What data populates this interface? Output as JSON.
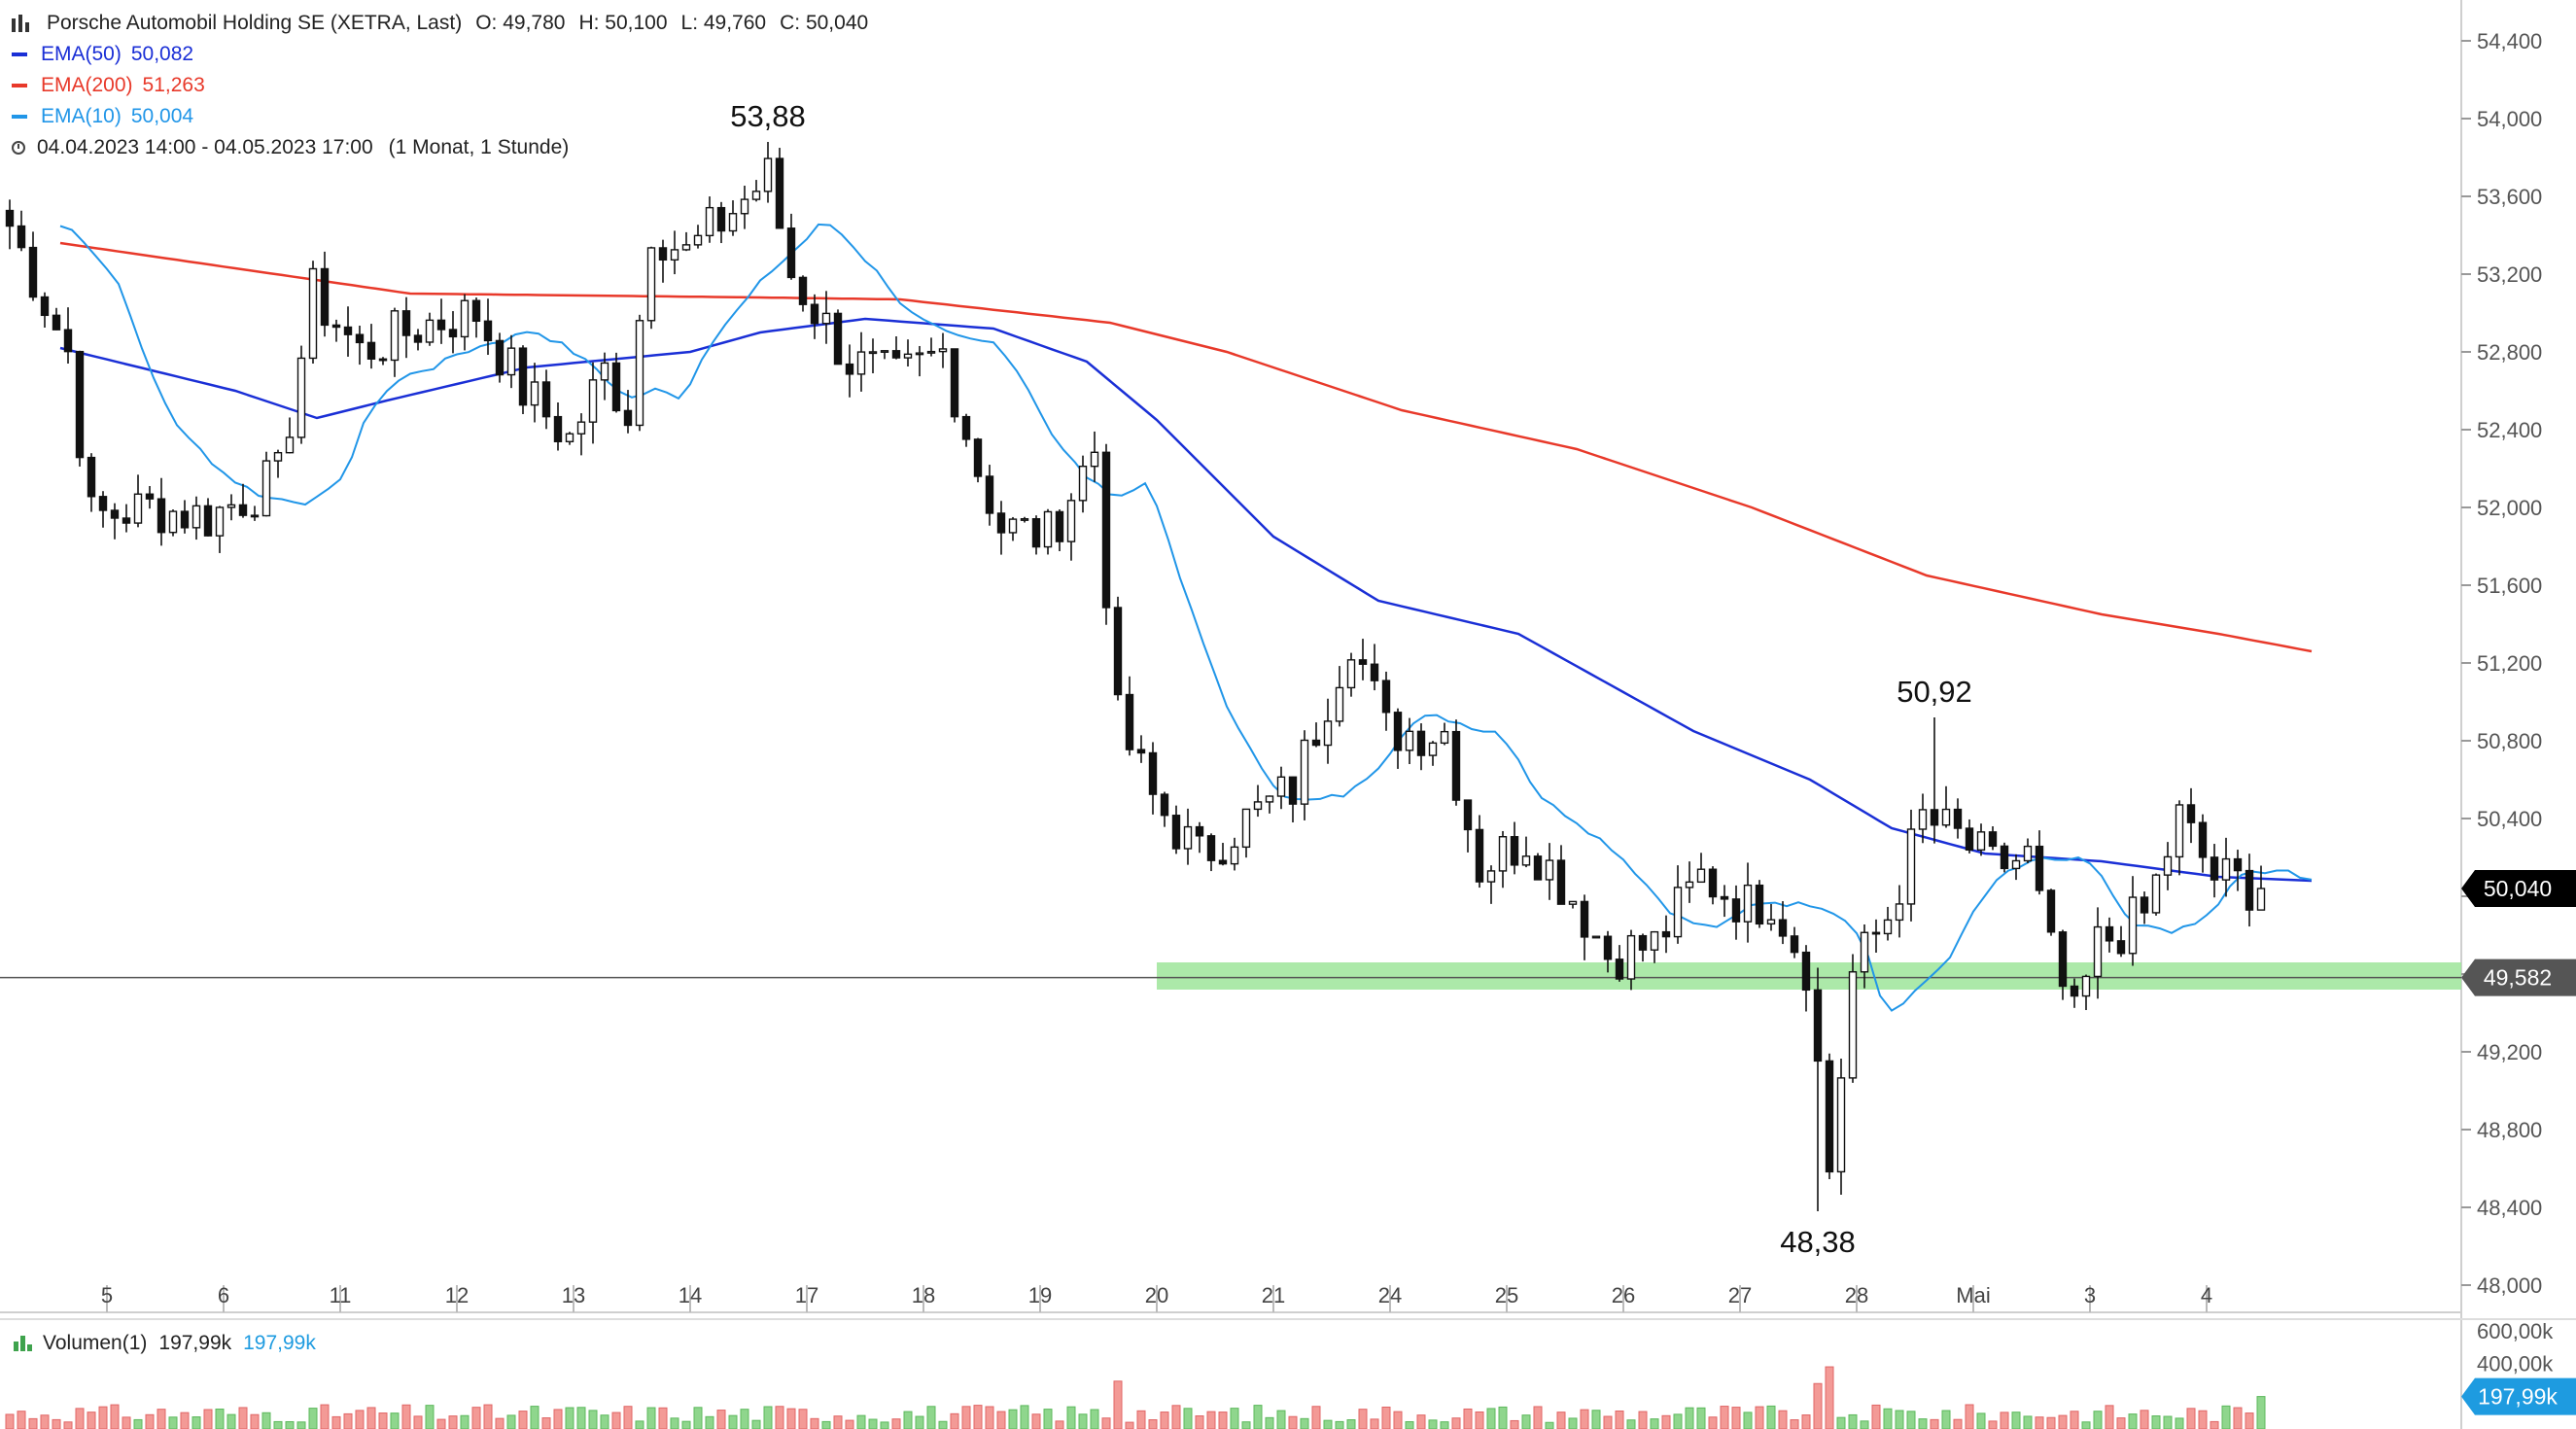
{
  "legend": {
    "title": "Porsche Automobil Holding SE (XETRA, Last)",
    "open": "O: 49,780",
    "high": "H: 50,100",
    "low": "L: 49,760",
    "close": "C: 50,040",
    "ema50_label": "EMA(50)",
    "ema50_value": "50,082",
    "ema200_label": "EMA(200)",
    "ema200_value": "51,263",
    "ema10_label": "EMA(10)",
    "ema10_value": "50,004",
    "range": "04.04.2023 14:00 - 04.05.2023 17:00",
    "period": "(1 Monat, 1 Stunde)"
  },
  "volume_legend": {
    "label": "Volumen(1)",
    "value1": "197,99k",
    "value2": "197,99k"
  },
  "colors": {
    "ema50": "#1a2fd6",
    "ema200": "#e8392a",
    "ema10": "#2196e8",
    "support_zone": "#9ee59a",
    "up_volume": "#8fd68d",
    "down_volume": "#f39a96",
    "last_price_tag": "#000000",
    "support_tag": "#555555",
    "volume_tag": "#1e9be0"
  },
  "chart_data": {
    "type": "candlestick",
    "ylim": [
      48.0,
      54.5
    ],
    "y_ticks": [
      "54,400",
      "54,000",
      "53,600",
      "53,200",
      "52,800",
      "52,400",
      "52,000",
      "51,600",
      "51,200",
      "50,800",
      "50,400",
      "50,000",
      "49,600",
      "49,200",
      "48,800",
      "48,400",
      "48,000"
    ],
    "y_tick_values": [
      54.4,
      54.0,
      53.6,
      53.2,
      52.8,
      52.4,
      52.0,
      51.6,
      51.2,
      50.8,
      50.4,
      50.0,
      49.6,
      49.2,
      48.8,
      48.4,
      48.0
    ],
    "x_tick_labels": [
      "5",
      "6",
      "11",
      "12",
      "13",
      "14",
      "17",
      "18",
      "19",
      "20",
      "21",
      "24",
      "25",
      "26",
      "27",
      "28",
      "Mai",
      "3",
      "4"
    ],
    "x_tick_index": [
      4,
      14,
      24,
      34,
      44,
      54,
      64,
      74,
      84,
      94,
      104,
      114,
      124,
      134,
      144,
      154,
      164,
      174,
      184
    ],
    "annotations": [
      {
        "text": "53,88",
        "index": 65,
        "value": 53.88,
        "position": "above"
      },
      {
        "text": "50,92",
        "index": 165,
        "value": 50.92,
        "position": "above"
      },
      {
        "text": "48,38",
        "index": 155,
        "value": 48.38,
        "position": "below"
      }
    ],
    "last_price": {
      "label": "50,040",
      "value": 50.04
    },
    "support": {
      "label": "49,582",
      "value": 49.582,
      "zone": [
        49.52,
        49.66
      ],
      "zone_start_index": 94
    },
    "volume": {
      "ylim": [
        0,
        600
      ],
      "y_ticks": [
        "600,00k",
        "400,00k"
      ],
      "y_tick_values": [
        600,
        400
      ],
      "last_label": "197,99k",
      "last_value": 197.99
    },
    "anchors": [
      {
        "i": 0,
        "v": 53.45
      },
      {
        "i": 5,
        "v": 52.8
      },
      {
        "i": 7,
        "v": 51.95
      },
      {
        "i": 12,
        "v": 52.0
      },
      {
        "i": 17,
        "v": 51.95
      },
      {
        "i": 23,
        "v": 52.15
      },
      {
        "i": 26,
        "v": 53.1
      },
      {
        "i": 30,
        "v": 52.8
      },
      {
        "i": 36,
        "v": 52.95
      },
      {
        "i": 40,
        "v": 53.0
      },
      {
        "i": 44,
        "v": 52.6
      },
      {
        "i": 48,
        "v": 52.35
      },
      {
        "i": 51,
        "v": 52.7
      },
      {
        "i": 53,
        "v": 52.5
      },
      {
        "i": 55,
        "v": 53.45
      },
      {
        "i": 58,
        "v": 53.3
      },
      {
        "i": 65,
        "v": 53.7
      },
      {
        "i": 67,
        "v": 53.2
      },
      {
        "i": 72,
        "v": 52.75
      },
      {
        "i": 76,
        "v": 52.65
      },
      {
        "i": 80,
        "v": 52.8
      },
      {
        "i": 83,
        "v": 52.2
      },
      {
        "i": 85,
        "v": 51.9
      },
      {
        "i": 89,
        "v": 51.85
      },
      {
        "i": 93,
        "v": 52.3
      },
      {
        "i": 95,
        "v": 50.9
      },
      {
        "i": 98,
        "v": 50.5
      },
      {
        "i": 102,
        "v": 50.2
      },
      {
        "i": 105,
        "v": 50.35
      },
      {
        "i": 110,
        "v": 50.55
      },
      {
        "i": 115,
        "v": 51.35
      },
      {
        "i": 118,
        "v": 50.85
      },
      {
        "i": 123,
        "v": 50.85
      },
      {
        "i": 126,
        "v": 50.15
      },
      {
        "i": 130,
        "v": 50.3
      },
      {
        "i": 134,
        "v": 50.0
      },
      {
        "i": 137,
        "v": 49.7
      },
      {
        "i": 141,
        "v": 49.75
      },
      {
        "i": 145,
        "v": 50.1
      },
      {
        "i": 149,
        "v": 49.95
      },
      {
        "i": 151,
        "v": 50.0
      },
      {
        "i": 154,
        "v": 49.65
      },
      {
        "i": 156,
        "v": 48.6
      },
      {
        "i": 158,
        "v": 49.6
      },
      {
        "i": 161,
        "v": 49.9
      },
      {
        "i": 164,
        "v": 50.4
      },
      {
        "i": 167,
        "v": 50.3
      },
      {
        "i": 170,
        "v": 50.15
      },
      {
        "i": 173,
        "v": 50.2
      },
      {
        "i": 175,
        "v": 49.7
      },
      {
        "i": 177,
        "v": 49.35
      },
      {
        "i": 179,
        "v": 49.75
      },
      {
        "i": 183,
        "v": 49.9
      },
      {
        "i": 186,
        "v": 50.4
      },
      {
        "i": 189,
        "v": 50.1
      },
      {
        "i": 193,
        "v": 50.04
      }
    ],
    "candle_count": 194,
    "ema50_anchors": [
      {
        "i": 0,
        "v": 52.82
      },
      {
        "i": 15,
        "v": 52.6
      },
      {
        "i": 22,
        "v": 52.46
      },
      {
        "i": 28,
        "v": 52.55
      },
      {
        "i": 40,
        "v": 52.72
      },
      {
        "i": 54,
        "v": 52.8
      },
      {
        "i": 60,
        "v": 52.9
      },
      {
        "i": 69,
        "v": 52.97
      },
      {
        "i": 80,
        "v": 52.92
      },
      {
        "i": 88,
        "v": 52.75
      },
      {
        "i": 94,
        "v": 52.45
      },
      {
        "i": 104,
        "v": 51.85
      },
      {
        "i": 113,
        "v": 51.52
      },
      {
        "i": 125,
        "v": 51.35
      },
      {
        "i": 140,
        "v": 50.85
      },
      {
        "i": 150,
        "v": 50.6
      },
      {
        "i": 157,
        "v": 50.35
      },
      {
        "i": 165,
        "v": 50.22
      },
      {
        "i": 175,
        "v": 50.18
      },
      {
        "i": 185,
        "v": 50.1
      },
      {
        "i": 193,
        "v": 50.08
      }
    ],
    "ema200_anchors": [
      {
        "i": 0,
        "v": 53.36
      },
      {
        "i": 30,
        "v": 53.1
      },
      {
        "i": 60,
        "v": 53.08
      },
      {
        "i": 72,
        "v": 53.07
      },
      {
        "i": 90,
        "v": 52.95
      },
      {
        "i": 100,
        "v": 52.8
      },
      {
        "i": 115,
        "v": 52.5
      },
      {
        "i": 130,
        "v": 52.3
      },
      {
        "i": 145,
        "v": 52.0
      },
      {
        "i": 160,
        "v": 51.65
      },
      {
        "i": 175,
        "v": 51.45
      },
      {
        "i": 185,
        "v": 51.35
      },
      {
        "i": 193,
        "v": 51.26
      }
    ]
  }
}
